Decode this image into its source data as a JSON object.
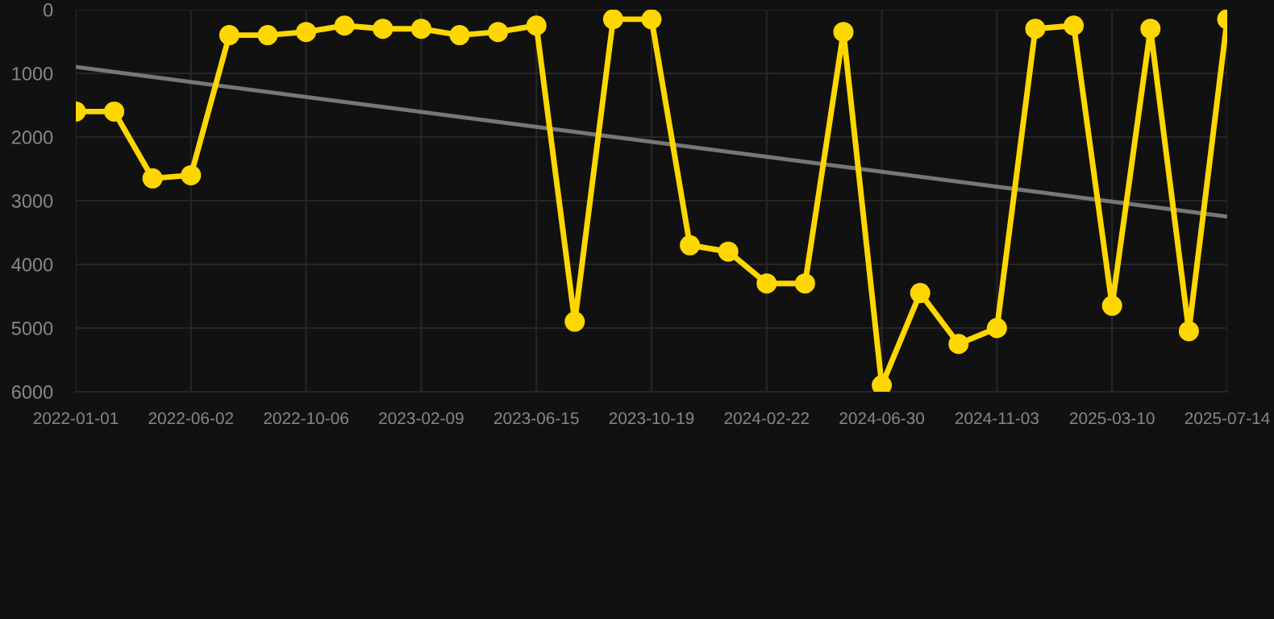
{
  "chart_data": {
    "type": "line",
    "categories": [
      "2022-01-01",
      null,
      null,
      "2022-06-02",
      null,
      null,
      "2022-10-06",
      null,
      null,
      "2023-02-09",
      null,
      null,
      "2023-06-15",
      null,
      null,
      "2023-10-19",
      null,
      null,
      "2024-02-22",
      null,
      null,
      "2024-06-30",
      null,
      null,
      "2024-11-03",
      null,
      null,
      "2025-03-10",
      null,
      null,
      "2025-07-14"
    ],
    "series": [
      {
        "color": "#ffd700",
        "marker": "circle",
        "values": [
          1600,
          1600,
          2650,
          2600,
          400,
          400,
          350,
          250,
          300,
          300,
          400,
          350,
          250,
          4900,
          150,
          150,
          3700,
          3800,
          4300,
          4300,
          350,
          5900,
          4450,
          5250,
          5000,
          300,
          250,
          4650,
          300,
          5050,
          150
        ]
      },
      {
        "type": "line",
        "color": "#777777",
        "marker": "none",
        "values": [
          900,
          null,
          null,
          null,
          null,
          null,
          null,
          null,
          null,
          null,
          null,
          null,
          null,
          null,
          null,
          null,
          null,
          null,
          null,
          null,
          null,
          null,
          null,
          null,
          null,
          null,
          null,
          null,
          null,
          null,
          3250
        ]
      }
    ],
    "ylim": [
      6000,
      0
    ],
    "yticks": [
      0,
      1000,
      2000,
      3000,
      4000,
      5000,
      6000
    ],
    "grid": true,
    "line_style": "solid"
  }
}
